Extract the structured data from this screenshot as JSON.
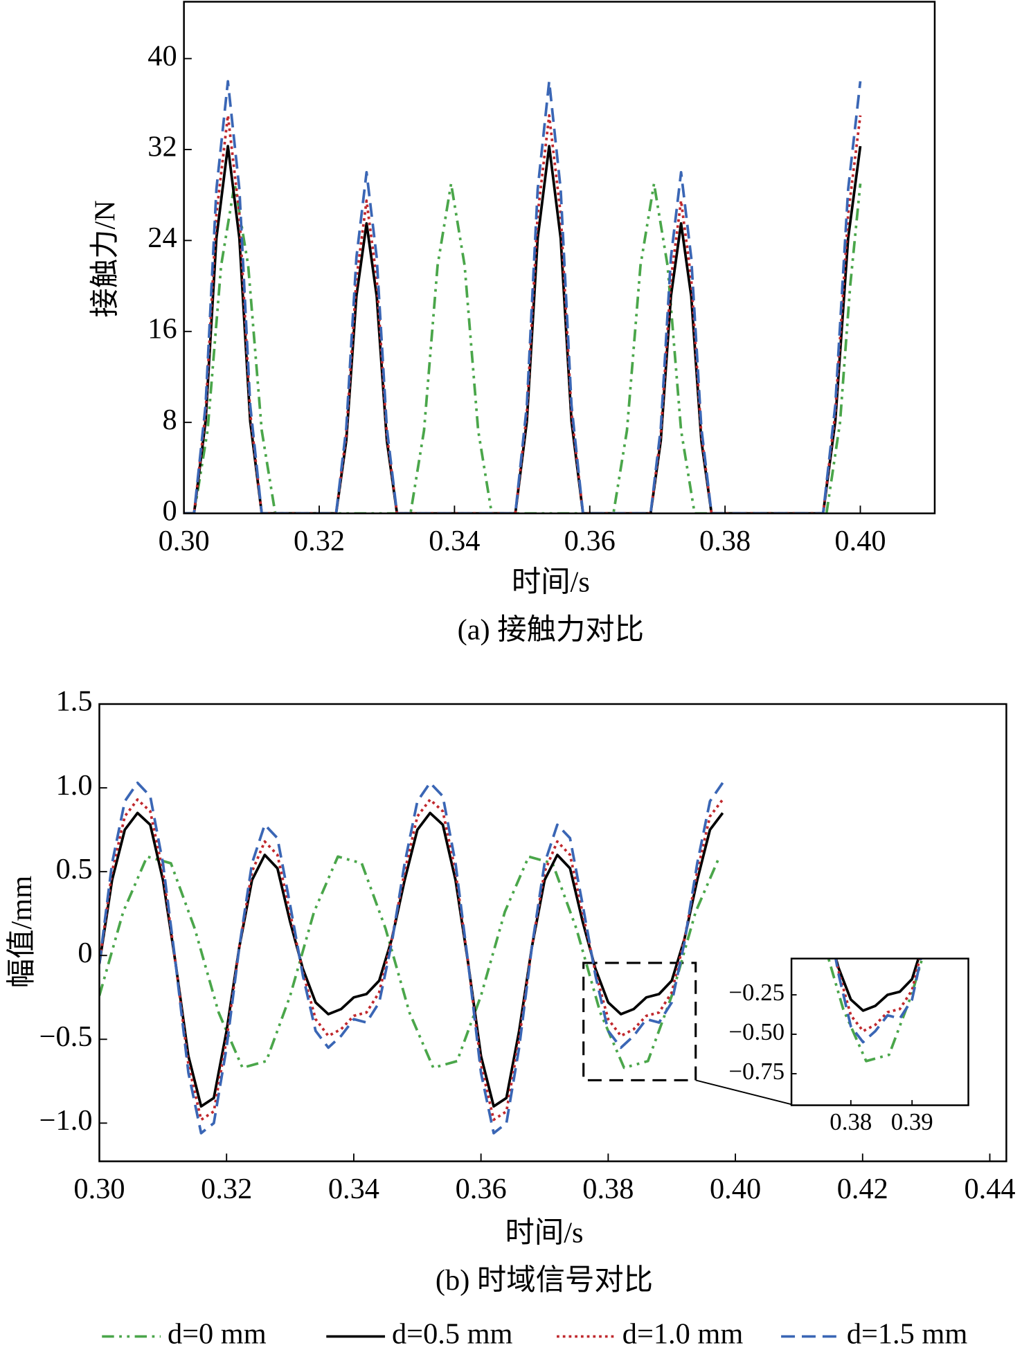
{
  "chart_data": [
    {
      "type": "line",
      "caption": "(a) 接触力对比",
      "xlabel": "时间/s",
      "ylabel": "接触力/N",
      "xlim": [
        0.3,
        0.411
      ],
      "ylim": [
        0,
        45
      ],
      "xticks": [
        {
          "value": 0.3,
          "label": "0.30"
        },
        {
          "value": 0.32,
          "label": "0.32"
        },
        {
          "value": 0.34,
          "label": "0.34"
        },
        {
          "value": 0.36,
          "label": "0.36"
        },
        {
          "value": 0.38,
          "label": "0.38"
        },
        {
          "value": 0.4,
          "label": "0.40"
        }
      ],
      "yticks": [
        0,
        8,
        16,
        24,
        32,
        40
      ],
      "series": [
        {
          "color": "#4aa64a",
          "style": "dashdot",
          "x": [
            0.3,
            0.3015,
            0.3035,
            0.3055,
            0.3075,
            0.3095,
            0.3115,
            0.3135,
            0.3335,
            0.3355,
            0.3375,
            0.3395,
            0.3415,
            0.3435,
            0.3455,
            0.3635,
            0.3655,
            0.3675,
            0.3695,
            0.3715,
            0.3735,
            0.3755,
            0.395,
            0.397,
            0.3985,
            0.4
          ],
          "values": [
            0,
            0,
            7.3,
            21.8,
            29,
            21.8,
            7.3,
            0,
            0,
            7.3,
            21.8,
            29,
            21.8,
            7.3,
            0,
            0,
            7.3,
            21.8,
            29,
            21.8,
            7.3,
            0,
            0,
            8,
            20,
            29
          ]
        },
        {
          "color": "#000000",
          "style": "solid",
          "x": [
            0.3,
            0.3015,
            0.3032,
            0.3048,
            0.3065,
            0.3082,
            0.3098,
            0.3115,
            0.3225,
            0.324,
            0.3255,
            0.327,
            0.3285,
            0.33,
            0.3315,
            0.349,
            0.3507,
            0.3523,
            0.354,
            0.3557,
            0.3573,
            0.359,
            0.369,
            0.3705,
            0.372,
            0.3735,
            0.375,
            0.3765,
            0.378,
            0.3945,
            0.3963,
            0.3982,
            0.4
          ],
          "values": [
            0,
            0,
            8.1,
            24.2,
            32.3,
            24.2,
            8.1,
            0,
            0,
            6.4,
            19.1,
            25.5,
            19.1,
            6.4,
            0,
            0,
            8.1,
            24.2,
            32.3,
            24.2,
            8.1,
            0,
            0,
            6.4,
            19.1,
            25.5,
            19.1,
            6.4,
            0,
            0,
            8.1,
            24.2,
            32.3
          ]
        },
        {
          "color": "#c0282d",
          "style": "dotted",
          "x": [
            0.3,
            0.3015,
            0.3032,
            0.3048,
            0.3065,
            0.3082,
            0.3098,
            0.3115,
            0.3225,
            0.324,
            0.3255,
            0.327,
            0.3285,
            0.33,
            0.3315,
            0.349,
            0.3507,
            0.3523,
            0.354,
            0.3557,
            0.3573,
            0.359,
            0.369,
            0.3705,
            0.372,
            0.3735,
            0.375,
            0.3765,
            0.378,
            0.3945,
            0.3963,
            0.3982,
            0.4
          ],
          "values": [
            0,
            0,
            8.8,
            26.3,
            35,
            26.3,
            8.8,
            0,
            0,
            6.9,
            20.6,
            27.5,
            20.6,
            6.9,
            0,
            0,
            8.8,
            26.3,
            35,
            26.3,
            8.8,
            0,
            0,
            6.9,
            20.6,
            27.5,
            20.6,
            6.9,
            0,
            0,
            8.8,
            26.3,
            35
          ]
        },
        {
          "color": "#3a66b5",
          "style": "dashed",
          "x": [
            0.3,
            0.3015,
            0.3032,
            0.3048,
            0.3065,
            0.3082,
            0.3098,
            0.3115,
            0.3225,
            0.324,
            0.3255,
            0.327,
            0.3285,
            0.33,
            0.3315,
            0.349,
            0.3507,
            0.3523,
            0.354,
            0.3557,
            0.3573,
            0.359,
            0.369,
            0.3705,
            0.372,
            0.3735,
            0.375,
            0.3765,
            0.378,
            0.3945,
            0.3963,
            0.3982,
            0.4
          ],
          "values": [
            0,
            0,
            9.5,
            28.5,
            38,
            28.5,
            9.5,
            0,
            0,
            7.5,
            22.5,
            30,
            22.5,
            7.5,
            0,
            0,
            9.5,
            28.5,
            38,
            28.5,
            9.5,
            0,
            0,
            7.5,
            22.5,
            30,
            22.5,
            7.5,
            0,
            0,
            9.5,
            28.5,
            38
          ]
        }
      ]
    },
    {
      "type": "line",
      "caption": "(b) 时域信号对比",
      "xlabel": "时间/s",
      "ylabel": "幅值/mm",
      "xlim": [
        0.3,
        0.4426
      ],
      "ylim": [
        -1.228,
        1.5
      ],
      "xticks": [
        {
          "value": 0.3,
          "label": "0.30"
        },
        {
          "value": 0.32,
          "label": "0.32"
        },
        {
          "value": 0.34,
          "label": "0.34"
        },
        {
          "value": 0.36,
          "label": "0.36"
        },
        {
          "value": 0.38,
          "label": "0.38"
        },
        {
          "value": 0.4,
          "label": "0.40"
        },
        {
          "value": 0.42,
          "label": "0.42"
        },
        {
          "value": 0.44,
          "label": "0.44"
        }
      ],
      "yticks": [
        1.5,
        {
          "value": 1,
          "label": "1.0"
        },
        0.5,
        0,
        {
          "value": -0.5,
          "label": "−0.5"
        },
        {
          "value": -1,
          "label": "−1.0"
        }
      ],
      "legend": "bottom",
      "series": [
        {
          "name": "d=0 mm",
          "color": "#4aa64a",
          "style": "dashdot",
          "x": [
            0.3,
            0.30375,
            0.3075,
            0.31125,
            0.315,
            0.31875,
            0.3225,
            0.32625,
            0.33,
            0.33375,
            0.3375,
            0.34125,
            0.345,
            0.34875,
            0.3525,
            0.35625,
            0.36,
            0.36375,
            0.3675,
            0.37125,
            0.375,
            0.37875,
            0.3825,
            0.38625,
            0.39,
            0.39375,
            0.3975
          ],
          "values": [
            -0.24,
            0.26,
            0.59,
            0.55,
            0.16,
            -0.34,
            -0.67,
            -0.63,
            -0.24,
            0.26,
            0.59,
            0.55,
            0.16,
            -0.34,
            -0.67,
            -0.63,
            -0.24,
            0.26,
            0.59,
            0.55,
            0.16,
            -0.34,
            -0.67,
            -0.63,
            -0.24,
            0.26,
            0.59
          ]
        },
        {
          "name": "d=0.5 mm",
          "color": "#000000",
          "style": "solid",
          "x": [
            0.3,
            0.302,
            0.304,
            0.306,
            0.308,
            0.31,
            0.312,
            0.314,
            0.316,
            0.318,
            0.32,
            0.322,
            0.324,
            0.326,
            0.328,
            0.33,
            0.332,
            0.334,
            0.336,
            0.338,
            0.34,
            0.342,
            0.344,
            0.346,
            0.348,
            0.35,
            0.352,
            0.354,
            0.356,
            0.358,
            0.36,
            0.362,
            0.364,
            0.366,
            0.368,
            0.37,
            0.372,
            0.374,
            0.376,
            0.378,
            0.38,
            0.382,
            0.384,
            0.386,
            0.388,
            0.39,
            0.392,
            0.394,
            0.396,
            0.398
          ],
          "values": [
            -0.05,
            0.45,
            0.75,
            0.85,
            0.78,
            0.45,
            -0.05,
            -0.6,
            -0.9,
            -0.85,
            -0.45,
            0.05,
            0.45,
            0.6,
            0.52,
            0.2,
            -0.08,
            -0.28,
            -0.35,
            -0.32,
            -0.25,
            -0.23,
            -0.15,
            0.1,
            0.45,
            0.75,
            0.85,
            0.78,
            0.45,
            -0.05,
            -0.6,
            -0.9,
            -0.85,
            -0.45,
            0.05,
            0.45,
            0.6,
            0.52,
            0.2,
            -0.08,
            -0.28,
            -0.35,
            -0.32,
            -0.25,
            -0.23,
            -0.15,
            0.1,
            0.45,
            0.75,
            0.85
          ]
        },
        {
          "name": "d=1.0 mm",
          "color": "#c0282d",
          "style": "dotted",
          "x": [
            0.3,
            0.302,
            0.304,
            0.306,
            0.308,
            0.31,
            0.312,
            0.314,
            0.316,
            0.318,
            0.32,
            0.322,
            0.324,
            0.326,
            0.328,
            0.33,
            0.332,
            0.334,
            0.336,
            0.338,
            0.34,
            0.342,
            0.344,
            0.346,
            0.348,
            0.35,
            0.352,
            0.354,
            0.356,
            0.358,
            0.36,
            0.362,
            0.364,
            0.366,
            0.368,
            0.37,
            0.372,
            0.374,
            0.376,
            0.378,
            0.38,
            0.382,
            0.384,
            0.386,
            0.388,
            0.39,
            0.392,
            0.394,
            0.396,
            0.398
          ],
          "values": [
            -0.05,
            0.5,
            0.83,
            0.93,
            0.86,
            0.5,
            -0.05,
            -0.65,
            -0.98,
            -0.93,
            -0.5,
            0.05,
            0.5,
            0.68,
            0.6,
            0.25,
            -0.1,
            -0.38,
            -0.48,
            -0.44,
            -0.36,
            -0.34,
            -0.22,
            0.1,
            0.5,
            0.83,
            0.93,
            0.86,
            0.5,
            -0.05,
            -0.65,
            -0.98,
            -0.93,
            -0.5,
            0.05,
            0.5,
            0.68,
            0.6,
            0.25,
            -0.1,
            -0.38,
            -0.48,
            -0.44,
            -0.36,
            -0.34,
            -0.22,
            0.1,
            0.5,
            0.83,
            0.93
          ]
        },
        {
          "name": "d=1.5 mm",
          "color": "#3a66b5",
          "style": "dashed",
          "x": [
            0.3,
            0.302,
            0.304,
            0.306,
            0.308,
            0.31,
            0.312,
            0.314,
            0.316,
            0.318,
            0.32,
            0.322,
            0.324,
            0.326,
            0.328,
            0.33,
            0.332,
            0.334,
            0.336,
            0.338,
            0.34,
            0.342,
            0.344,
            0.346,
            0.348,
            0.35,
            0.352,
            0.354,
            0.356,
            0.358,
            0.36,
            0.362,
            0.364,
            0.366,
            0.368,
            0.37,
            0.372,
            0.374,
            0.376,
            0.378,
            0.38,
            0.382,
            0.384,
            0.386,
            0.388,
            0.39,
            0.392,
            0.394,
            0.396,
            0.398
          ],
          "values": [
            -0.05,
            0.55,
            0.92,
            1.03,
            0.95,
            0.55,
            -0.05,
            -0.7,
            -1.06,
            -1.0,
            -0.55,
            0.05,
            0.55,
            0.78,
            0.7,
            0.3,
            -0.12,
            -0.45,
            -0.55,
            -0.48,
            -0.38,
            -0.4,
            -0.28,
            0.08,
            0.55,
            0.92,
            1.03,
            0.95,
            0.55,
            -0.05,
            -0.7,
            -1.06,
            -1.0,
            -0.55,
            0.05,
            0.55,
            0.78,
            0.7,
            0.3,
            -0.12,
            -0.45,
            -0.55,
            -0.48,
            -0.38,
            -0.4,
            -0.28,
            0.08,
            0.55,
            0.92,
            1.03
          ]
        }
      ],
      "inset": {
        "xlim": [
          0.3703,
          0.3992
        ],
        "ylim": [
          -0.95,
          -0.02
        ],
        "xticks": [
          0.38,
          0.39
        ],
        "yticks": [
          {
            "value": -0.25,
            "label": "−0.25"
          },
          {
            "value": -0.5,
            "label": "−0.50"
          },
          {
            "value": -0.75,
            "label": "−0.75"
          }
        ]
      }
    }
  ]
}
